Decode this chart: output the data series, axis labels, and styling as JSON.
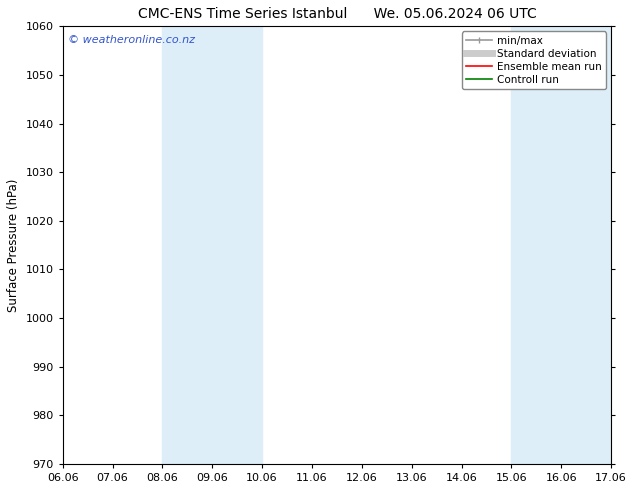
{
  "title_left": "CMC-ENS Time Series Istanbul",
  "title_right": "We. 05.06.2024 06 UTC",
  "ylabel": "Surface Pressure (hPa)",
  "ylim": [
    970,
    1060
  ],
  "yticks": [
    970,
    980,
    990,
    1000,
    1010,
    1020,
    1030,
    1040,
    1050,
    1060
  ],
  "xtick_labels": [
    "06.06",
    "07.06",
    "08.06",
    "09.06",
    "10.06",
    "11.06",
    "12.06",
    "13.06",
    "14.06",
    "15.06",
    "16.06",
    "17.06"
  ],
  "xtick_positions": [
    0,
    1,
    2,
    3,
    4,
    5,
    6,
    7,
    8,
    9,
    10,
    11
  ],
  "shaded_regions": [
    {
      "xmin": 2,
      "xmax": 4,
      "color": "#ddeef8"
    },
    {
      "xmin": 9,
      "xmax": 11,
      "color": "#ddeef8"
    }
  ],
  "watermark_text": "© weatheronline.co.nz",
  "watermark_color": "#3355cc",
  "legend_entries": [
    {
      "label": "min/max",
      "color": "#999999",
      "lw": 1.2,
      "style": "solid"
    },
    {
      "label": "Standard deviation",
      "color": "#cccccc",
      "lw": 5,
      "style": "solid"
    },
    {
      "label": "Ensemble mean run",
      "color": "#ff0000",
      "lw": 1.2,
      "style": "solid"
    },
    {
      "label": "Controll run",
      "color": "#008000",
      "lw": 1.2,
      "style": "solid"
    }
  ],
  "bg_color": "#ffffff",
  "plot_bg_color": "#ffffff",
  "title_fontsize": 10,
  "ylabel_fontsize": 8.5,
  "tick_fontsize": 8,
  "watermark_fontsize": 8
}
